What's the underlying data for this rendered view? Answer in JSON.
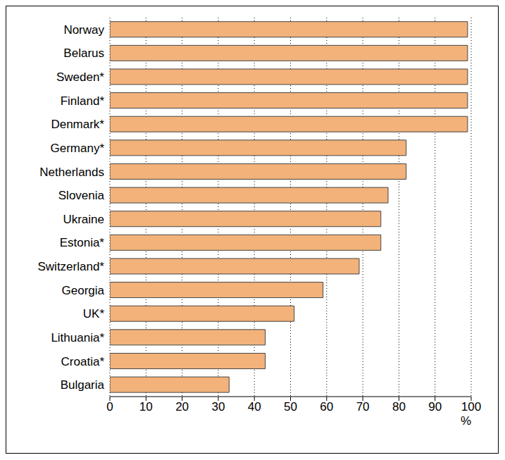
{
  "chart_data": {
    "type": "bar",
    "orientation": "horizontal",
    "categories": [
      "Norway",
      "Belarus",
      "Sweden*",
      "Finland*",
      "Denmark*",
      "Germany*",
      "Netherlands",
      "Slovenia",
      "Ukraine",
      "Estonia*",
      "Switzerland*",
      "Georgia",
      "UK*",
      "Lithuania*",
      "Croatia*",
      "Bulgaria"
    ],
    "values": [
      99,
      99,
      99,
      99,
      99,
      82,
      82,
      77,
      75,
      75,
      69,
      59,
      51,
      43,
      43,
      33
    ],
    "color": "#f2b27a",
    "xlim": [
      0,
      100
    ],
    "xticks": [
      0,
      10,
      20,
      30,
      40,
      50,
      60,
      70,
      80,
      90,
      100
    ],
    "x_label": "%",
    "grid": true
  }
}
